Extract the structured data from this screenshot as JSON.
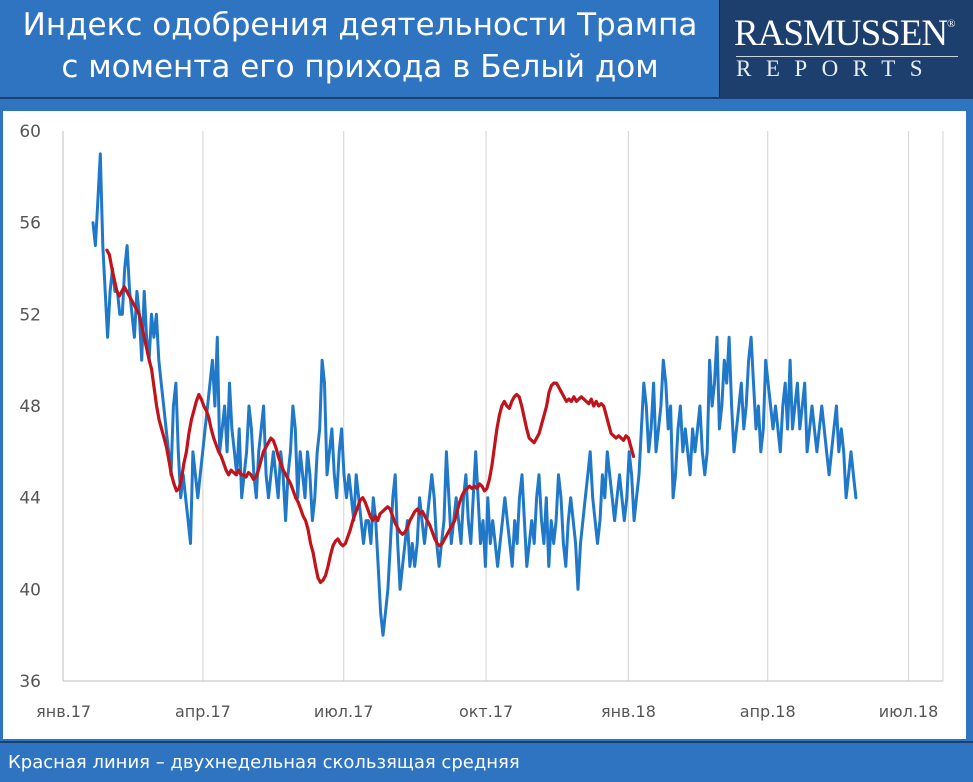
{
  "header": {
    "title_line1": "Индекс одобрения деятельности Трампа",
    "title_line2": "с момента его прихода в Белый дом",
    "logo_top": "RASMUSSEN",
    "logo_registered": "®",
    "logo_bottom": "REPORTS"
  },
  "footer": {
    "caption": "Красная линия – двухнедельная скользящая средняя"
  },
  "colors": {
    "frame": "#2e74c0",
    "logo_bg": "#1c3f6e",
    "daily_line": "#1f78c8",
    "average_line": "#c0141a",
    "grid": "#d9d9d9"
  },
  "chart_data": {
    "type": "line",
    "title": "",
    "xlabel": "",
    "ylabel": "",
    "ylim": [
      36,
      60
    ],
    "yticks": [
      "60",
      "56",
      "52",
      "48",
      "44",
      "40",
      "36"
    ],
    "xticks": [
      "янв.17",
      "апр.17",
      "июл.17",
      "окт.17",
      "янв.18",
      "апр.18",
      "июл.18"
    ],
    "x_start": "2017-01-01",
    "grid": "vertical",
    "legend": "none",
    "series": [
      {
        "role": "daily",
        "color": "#1f78c8",
        "values": [
          56,
          55,
          57,
          59,
          55,
          53,
          51,
          53,
          54,
          53,
          53,
          52,
          52,
          54,
          55,
          53,
          52,
          51,
          53,
          52,
          50,
          53,
          51,
          50,
          52,
          51,
          52,
          50,
          49,
          48,
          47,
          46,
          45,
          48,
          49,
          46,
          44,
          45,
          44,
          43,
          42,
          46,
          45,
          44,
          45,
          46,
          47,
          48,
          49,
          50,
          48,
          51,
          46,
          47,
          48,
          46,
          49,
          47,
          46,
          45,
          47,
          44,
          45,
          46,
          48,
          47,
          45,
          44,
          46,
          47,
          48,
          45,
          44,
          45,
          46,
          45,
          44,
          46,
          45,
          43,
          45,
          46,
          48,
          47,
          44,
          46,
          45,
          44,
          46,
          45,
          43,
          44,
          46,
          47,
          50,
          49,
          45,
          46,
          47,
          45,
          44,
          46,
          47,
          45,
          44,
          45,
          44,
          43,
          45,
          44,
          43,
          42,
          43,
          43,
          42,
          44,
          43,
          41,
          39,
          38,
          39,
          40,
          42,
          44,
          45,
          42,
          40,
          41,
          42,
          43,
          41,
          42,
          41,
          42,
          44,
          43,
          42,
          43,
          44,
          45,
          44,
          42,
          41,
          42,
          43,
          46,
          44,
          42,
          43,
          44,
          43,
          42,
          44,
          45,
          43,
          42,
          44,
          46,
          44,
          42,
          43,
          41,
          44,
          42,
          43,
          42,
          41,
          42,
          43,
          44,
          43,
          42,
          41,
          43,
          42,
          44,
          45,
          43,
          41,
          42,
          43,
          42,
          44,
          45,
          43,
          42,
          44,
          41,
          43,
          42,
          43,
          45,
          44,
          42,
          41,
          43,
          44,
          43,
          42,
          40,
          42,
          43,
          44,
          45,
          46,
          44,
          43,
          42,
          43,
          45,
          44,
          46,
          45,
          44,
          43,
          44,
          45,
          44,
          43,
          44,
          46,
          45,
          43,
          44,
          45,
          47,
          49,
          48,
          46,
          47,
          49,
          46,
          47,
          48,
          50,
          49,
          47,
          48,
          44,
          45,
          47,
          48,
          46,
          47,
          46,
          45,
          47,
          46,
          47,
          48,
          46,
          45,
          46,
          50,
          48,
          49,
          51,
          47,
          48,
          50,
          49,
          51,
          48,
          46,
          47,
          48,
          49,
          47,
          48,
          50,
          51,
          49,
          47,
          48,
          46,
          47,
          50,
          49,
          48,
          47,
          48,
          47,
          46,
          48,
          49,
          47,
          50,
          47,
          48,
          49,
          47,
          48,
          49,
          46,
          47,
          48,
          47,
          46,
          47,
          48,
          47,
          46,
          45,
          46,
          47,
          48,
          46,
          47,
          46,
          44,
          45,
          46,
          45,
          44
        ],
        "x_start": "2017-01-20"
      },
      {
        "role": "two_week_moving_average",
        "color": "#c0141a",
        "values": [
          54.8,
          54.6,
          54.0,
          53.5,
          53.0,
          52.8,
          53.0,
          53.2,
          53.0,
          52.8,
          52.6,
          52.4,
          52.2,
          52.0,
          51.5,
          51.0,
          50.5,
          50.0,
          49.6,
          48.8,
          48.0,
          47.4,
          47.0,
          46.6,
          46.2,
          45.6,
          45.0,
          44.6,
          44.3,
          44.4,
          44.8,
          45.5,
          46.0,
          46.8,
          47.4,
          47.8,
          48.2,
          48.5,
          48.3,
          48.0,
          47.8,
          47.5,
          47.0,
          46.6,
          46.3,
          46.0,
          45.8,
          45.5,
          45.2,
          45.0,
          45.2,
          45.1,
          45.0,
          45.2,
          45.0,
          45.0,
          44.9,
          45.1,
          45.0,
          44.8,
          44.9,
          45.2,
          45.6,
          46.0,
          46.2,
          46.4,
          46.6,
          46.5,
          46.2,
          45.8,
          45.5,
          45.2,
          45.0,
          44.8,
          44.6,
          44.3,
          44.0,
          43.8,
          43.5,
          43.2,
          43.0,
          42.6,
          42.0,
          41.6,
          41.0,
          40.5,
          40.3,
          40.4,
          40.6,
          41.0,
          41.5,
          41.9,
          42.1,
          42.2,
          42.0,
          41.9,
          42.0,
          42.3,
          42.6,
          43.0,
          43.3,
          43.6,
          43.9,
          44.0,
          43.8,
          43.5,
          43.2,
          43.0,
          43.2,
          43.0,
          43.3,
          43.4,
          43.5,
          43.6,
          43.5,
          43.2,
          42.9,
          42.7,
          42.5,
          42.4,
          42.5,
          42.7,
          43.0,
          43.2,
          43.4,
          43.5,
          43.3,
          43.4,
          43.2,
          43.0,
          42.8,
          42.5,
          42.2,
          42.0,
          41.9,
          42.0,
          42.2,
          42.4,
          42.6,
          42.8,
          43.0,
          43.4,
          43.8,
          44.1,
          44.3,
          44.4,
          44.5,
          44.4,
          44.5,
          44.4,
          44.6,
          44.5,
          44.3,
          44.4,
          44.8,
          45.4,
          46.2,
          47.0,
          47.6,
          48.0,
          48.2,
          48.0,
          47.9,
          48.2,
          48.4,
          48.5,
          48.4,
          48.0,
          47.5,
          47.0,
          46.6,
          46.5,
          46.4,
          46.6,
          46.8,
          47.2,
          47.6,
          48.0,
          48.6,
          48.9,
          49.0,
          49.0,
          48.8,
          48.6,
          48.4,
          48.2,
          48.3,
          48.2,
          48.4,
          48.2,
          48.3,
          48.4,
          48.3,
          48.2,
          48.1,
          48.3,
          48.0,
          48.2,
          48.0,
          48.1,
          48.0,
          47.6,
          47.2,
          46.8,
          46.7,
          46.6,
          46.7,
          46.6,
          46.5,
          46.7,
          46.6,
          46.2,
          45.8
        ],
        "x_start": "2017-01-29"
      }
    ]
  }
}
